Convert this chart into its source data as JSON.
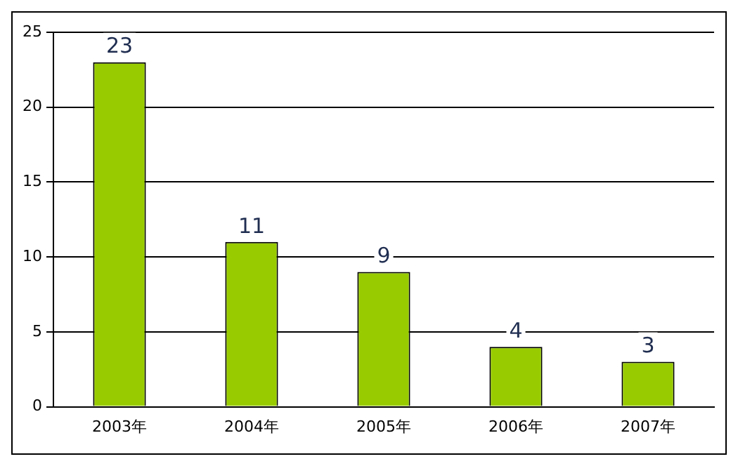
{
  "chart_data": {
    "type": "bar",
    "categories": [
      "2003年",
      "2004年",
      "2005年",
      "2006年",
      "2007年"
    ],
    "values": [
      23,
      11,
      9,
      4,
      3
    ],
    "color": "#99cc00",
    "ylim": [
      0,
      25
    ],
    "yticks": [
      0,
      5,
      10,
      15,
      20,
      25
    ],
    "grid": "y",
    "data_labels": true,
    "legend": false
  }
}
